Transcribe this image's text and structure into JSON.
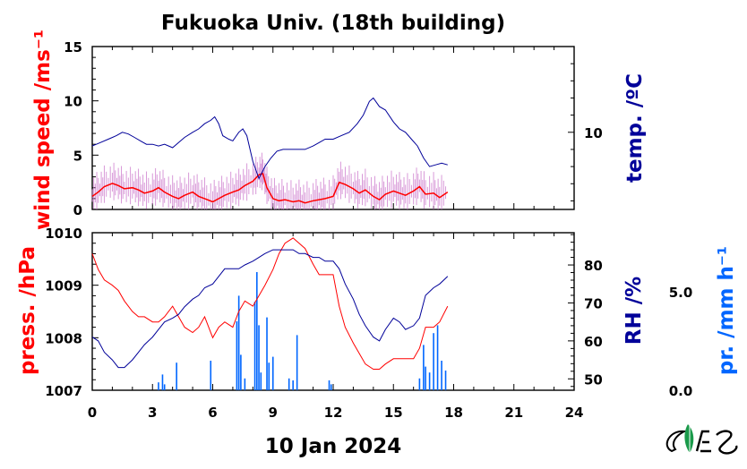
{
  "title": "Fukuoka Univ. (18th building)",
  "date_label": "10 Jan 2024",
  "colors": {
    "wind": "#ff0000",
    "wind_raw": "#cc77cc",
    "temp": "#000099",
    "pressure": "#ff0000",
    "rh": "#000099",
    "precip": "#0066ff",
    "logo_green": "#1a9a4a"
  },
  "logo": {
    "name": "institution-logo"
  },
  "chart_data": [
    {
      "type": "line",
      "panel": "top",
      "x_axis": {
        "label": "",
        "ticks": [
          0,
          3,
          6,
          9,
          12,
          15,
          18,
          21,
          24
        ],
        "range": [
          0,
          24
        ]
      },
      "y_left": {
        "label": "wind speed /ms⁻¹",
        "ticks": [
          0,
          5,
          10,
          15
        ],
        "range": [
          0,
          15
        ]
      },
      "y_right": {
        "label": "temp. /ºC",
        "ticks": [
          10
        ],
        "range": [
          5.5,
          15
        ]
      },
      "series": [
        {
          "key": "wind_smooth",
          "axis": "left",
          "color": "#ff0000",
          "points": [
            [
              0,
              1.2
            ],
            [
              0.3,
              1.6
            ],
            [
              0.6,
              2.1
            ],
            [
              1.0,
              2.4
            ],
            [
              1.3,
              2.2
            ],
            [
              1.6,
              1.9
            ],
            [
              2.0,
              2.0
            ],
            [
              2.3,
              1.8
            ],
            [
              2.6,
              1.5
            ],
            [
              3.0,
              1.7
            ],
            [
              3.3,
              2.0
            ],
            [
              3.6,
              1.6
            ],
            [
              4.0,
              1.2
            ],
            [
              4.3,
              1.0
            ],
            [
              4.6,
              1.3
            ],
            [
              5.0,
              1.6
            ],
            [
              5.3,
              1.2
            ],
            [
              5.6,
              1.0
            ],
            [
              6.0,
              0.7
            ],
            [
              6.3,
              1.0
            ],
            [
              6.6,
              1.3
            ],
            [
              7.0,
              1.6
            ],
            [
              7.3,
              1.8
            ],
            [
              7.6,
              2.2
            ],
            [
              8.0,
              2.6
            ],
            [
              8.3,
              3.2
            ],
            [
              8.5,
              3.3
            ],
            [
              8.7,
              2.0
            ],
            [
              9.0,
              1.0
            ],
            [
              9.3,
              0.8
            ],
            [
              9.6,
              0.9
            ],
            [
              10.0,
              0.7
            ],
            [
              10.3,
              0.8
            ],
            [
              10.6,
              0.6
            ],
            [
              11.0,
              0.8
            ],
            [
              11.3,
              0.9
            ],
            [
              11.6,
              1.0
            ],
            [
              12.0,
              1.2
            ],
            [
              12.3,
              2.5
            ],
            [
              12.6,
              2.3
            ],
            [
              13.0,
              1.9
            ],
            [
              13.3,
              1.5
            ],
            [
              13.6,
              1.8
            ],
            [
              14.0,
              1.2
            ],
            [
              14.3,
              0.9
            ],
            [
              14.6,
              1.4
            ],
            [
              15.0,
              1.7
            ],
            [
              15.3,
              1.5
            ],
            [
              15.6,
              1.3
            ],
            [
              16.0,
              1.7
            ],
            [
              16.3,
              2.1
            ],
            [
              16.6,
              1.4
            ],
            [
              17.0,
              1.5
            ],
            [
              17.3,
              1.1
            ],
            [
              17.7,
              1.6
            ]
          ]
        },
        {
          "key": "temp",
          "axis": "right",
          "color": "#000099",
          "points": [
            [
              0,
              9.2
            ],
            [
              0.4,
              9.4
            ],
            [
              0.8,
              9.6
            ],
            [
              1.2,
              9.8
            ],
            [
              1.5,
              10.0
            ],
            [
              1.8,
              9.9
            ],
            [
              2.1,
              9.7
            ],
            [
              2.4,
              9.5
            ],
            [
              2.7,
              9.3
            ],
            [
              3.0,
              9.3
            ],
            [
              3.3,
              9.2
            ],
            [
              3.6,
              9.3
            ],
            [
              4.0,
              9.1
            ],
            [
              4.3,
              9.4
            ],
            [
              4.6,
              9.7
            ],
            [
              5.0,
              10.0
            ],
            [
              5.3,
              10.2
            ],
            [
              5.6,
              10.5
            ],
            [
              5.9,
              10.7
            ],
            [
              6.1,
              10.9
            ],
            [
              6.3,
              10.5
            ],
            [
              6.5,
              9.8
            ],
            [
              6.8,
              9.6
            ],
            [
              7.0,
              9.5
            ],
            [
              7.3,
              10.0
            ],
            [
              7.5,
              10.2
            ],
            [
              7.7,
              9.8
            ],
            [
              8.0,
              8.3
            ],
            [
              8.3,
              7.3
            ],
            [
              8.6,
              8.0
            ],
            [
              8.9,
              8.5
            ],
            [
              9.2,
              8.9
            ],
            [
              9.5,
              9.0
            ],
            [
              9.8,
              9.0
            ],
            [
              10.2,
              9.0
            ],
            [
              10.6,
              9.0
            ],
            [
              11.0,
              9.2
            ],
            [
              11.3,
              9.4
            ],
            [
              11.6,
              9.6
            ],
            [
              12.0,
              9.6
            ],
            [
              12.4,
              9.8
            ],
            [
              12.8,
              10.0
            ],
            [
              13.2,
              10.5
            ],
            [
              13.5,
              11.0
            ],
            [
              13.8,
              11.8
            ],
            [
              14.0,
              12.0
            ],
            [
              14.3,
              11.5
            ],
            [
              14.6,
              11.3
            ],
            [
              15.0,
              10.6
            ],
            [
              15.3,
              10.2
            ],
            [
              15.6,
              10.0
            ],
            [
              15.9,
              9.6
            ],
            [
              16.2,
              9.2
            ],
            [
              16.5,
              8.5
            ],
            [
              16.8,
              8.0
            ],
            [
              17.1,
              8.1
            ],
            [
              17.4,
              8.2
            ],
            [
              17.7,
              8.1
            ]
          ]
        }
      ]
    },
    {
      "type": "line",
      "panel": "bottom",
      "x_axis": {
        "label": "10 Jan 2024",
        "ticks": [
          0,
          3,
          6,
          9,
          12,
          15,
          18,
          21,
          24
        ],
        "range": [
          0,
          24
        ]
      },
      "y_left": {
        "label": "press. /hPa",
        "ticks": [
          1007,
          1008,
          1009,
          1010
        ],
        "range": [
          1007,
          1010
        ]
      },
      "y_right": {
        "label": "RH /%",
        "ticks": [
          50,
          60,
          70,
          80
        ],
        "range": [
          47,
          88.5
        ]
      },
      "y_right2": {
        "label": "pr. /mm h⁻¹",
        "ticks": [
          0.0,
          5.0
        ],
        "range": [
          0,
          8
        ]
      },
      "series": [
        {
          "key": "pressure",
          "axis": "left",
          "color": "#ff0000",
          "points": [
            [
              0,
              1009.6
            ],
            [
              0.3,
              1009.3
            ],
            [
              0.6,
              1009.1
            ],
            [
              1.0,
              1009.0
            ],
            [
              1.3,
              1008.9
            ],
            [
              1.6,
              1008.7
            ],
            [
              2.0,
              1008.5
            ],
            [
              2.3,
              1008.4
            ],
            [
              2.6,
              1008.4
            ],
            [
              3.0,
              1008.3
            ],
            [
              3.3,
              1008.3
            ],
            [
              3.6,
              1008.4
            ],
            [
              4.0,
              1008.6
            ],
            [
              4.3,
              1008.4
            ],
            [
              4.6,
              1008.2
            ],
            [
              5.0,
              1008.1
            ],
            [
              5.3,
              1008.2
            ],
            [
              5.6,
              1008.4
            ],
            [
              6.0,
              1008.0
            ],
            [
              6.3,
              1008.2
            ],
            [
              6.6,
              1008.3
            ],
            [
              7.0,
              1008.2
            ],
            [
              7.3,
              1008.5
            ],
            [
              7.6,
              1008.7
            ],
            [
              8.0,
              1008.6
            ],
            [
              8.3,
              1008.8
            ],
            [
              8.6,
              1009.0
            ],
            [
              9.0,
              1009.3
            ],
            [
              9.3,
              1009.6
            ],
            [
              9.6,
              1009.8
            ],
            [
              10.0,
              1009.9
            ],
            [
              10.3,
              1009.8
            ],
            [
              10.6,
              1009.7
            ],
            [
              11.0,
              1009.4
            ],
            [
              11.3,
              1009.2
            ],
            [
              11.6,
              1009.2
            ],
            [
              12.0,
              1009.2
            ],
            [
              12.3,
              1008.6
            ],
            [
              12.6,
              1008.2
            ],
            [
              13.0,
              1007.9
            ],
            [
              13.3,
              1007.7
            ],
            [
              13.6,
              1007.5
            ],
            [
              14.0,
              1007.4
            ],
            [
              14.3,
              1007.4
            ],
            [
              14.6,
              1007.5
            ],
            [
              15.0,
              1007.6
            ],
            [
              15.3,
              1007.6
            ],
            [
              15.6,
              1007.6
            ],
            [
              16.0,
              1007.6
            ],
            [
              16.3,
              1007.8
            ],
            [
              16.6,
              1008.2
            ],
            [
              17.0,
              1008.2
            ],
            [
              17.3,
              1008.3
            ],
            [
              17.7,
              1008.6
            ]
          ]
        },
        {
          "key": "rh",
          "axis": "right",
          "color": "#000099",
          "points": [
            [
              0,
              61
            ],
            [
              0.3,
              60
            ],
            [
              0.6,
              57
            ],
            [
              1.0,
              55
            ],
            [
              1.3,
              53
            ],
            [
              1.6,
              53
            ],
            [
              2.0,
              55
            ],
            [
              2.3,
              57
            ],
            [
              2.6,
              59
            ],
            [
              3.0,
              61
            ],
            [
              3.3,
              63
            ],
            [
              3.6,
              65
            ],
            [
              4.0,
              66
            ],
            [
              4.3,
              67
            ],
            [
              4.6,
              69
            ],
            [
              5.0,
              71
            ],
            [
              5.3,
              72
            ],
            [
              5.6,
              74
            ],
            [
              6.0,
              75
            ],
            [
              6.3,
              77
            ],
            [
              6.6,
              79
            ],
            [
              7.0,
              79
            ],
            [
              7.3,
              79
            ],
            [
              7.6,
              80
            ],
            [
              8.0,
              81
            ],
            [
              8.3,
              82
            ],
            [
              8.6,
              83
            ],
            [
              9.0,
              84
            ],
            [
              9.3,
              84
            ],
            [
              9.6,
              84
            ],
            [
              10.0,
              84
            ],
            [
              10.3,
              83
            ],
            [
              10.6,
              83
            ],
            [
              11.0,
              82
            ],
            [
              11.3,
              82
            ],
            [
              11.6,
              81
            ],
            [
              12.0,
              81
            ],
            [
              12.3,
              79
            ],
            [
              12.6,
              75
            ],
            [
              13.0,
              71
            ],
            [
              13.3,
              67
            ],
            [
              13.6,
              64
            ],
            [
              14.0,
              61
            ],
            [
              14.3,
              60
            ],
            [
              14.6,
              63
            ],
            [
              15.0,
              66
            ],
            [
              15.3,
              65
            ],
            [
              15.6,
              63
            ],
            [
              16.0,
              64
            ],
            [
              16.3,
              66
            ],
            [
              16.6,
              72
            ],
            [
              17.0,
              74
            ],
            [
              17.3,
              75
            ],
            [
              17.7,
              77
            ]
          ]
        },
        {
          "key": "precip",
          "axis": "right2",
          "type": "bar",
          "color": "#0066ff",
          "points": [
            [
              3.3,
              0.4
            ],
            [
              3.5,
              0.8
            ],
            [
              3.6,
              0.3
            ],
            [
              4.2,
              1.4
            ],
            [
              5.9,
              1.5
            ],
            [
              7.2,
              3.5
            ],
            [
              7.3,
              4.8
            ],
            [
              7.4,
              1.8
            ],
            [
              7.6,
              0.6
            ],
            [
              8.1,
              4.5
            ],
            [
              8.2,
              6.0
            ],
            [
              8.3,
              3.3
            ],
            [
              8.4,
              0.9
            ],
            [
              8.7,
              3.7
            ],
            [
              8.8,
              1.4
            ],
            [
              9.0,
              1.7
            ],
            [
              9.8,
              0.6
            ],
            [
              10.0,
              0.5
            ],
            [
              10.2,
              2.8
            ],
            [
              11.8,
              0.5
            ],
            [
              11.9,
              0.3
            ],
            [
              16.3,
              0.6
            ],
            [
              16.5,
              2.3
            ],
            [
              16.6,
              1.2
            ],
            [
              16.8,
              0.9
            ],
            [
              17.0,
              2.9
            ],
            [
              17.2,
              3.3
            ],
            [
              17.4,
              1.5
            ],
            [
              17.6,
              1.0
            ]
          ]
        }
      ]
    }
  ]
}
